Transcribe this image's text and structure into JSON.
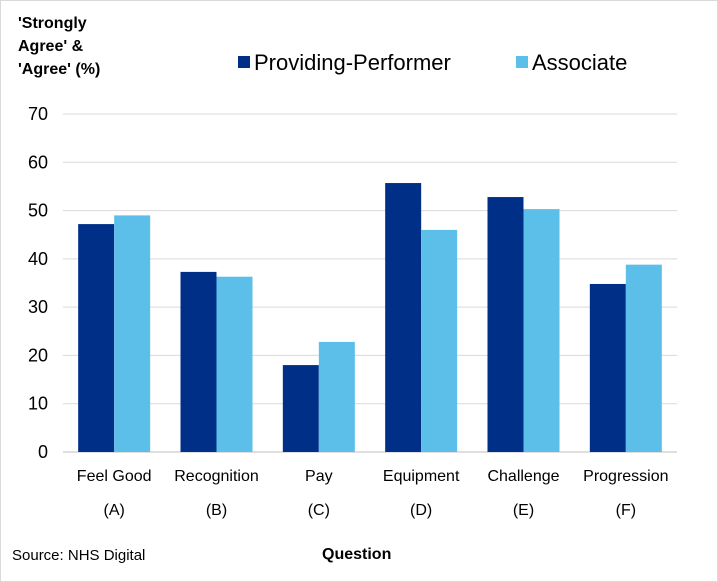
{
  "chart_data": {
    "type": "bar",
    "ylabel": "'Strongly Agree' & 'Agree' (%)",
    "xlabel": "Question",
    "source": "Source: NHS Digital",
    "ylim": [
      0,
      70
    ],
    "yticks": [
      0,
      10,
      20,
      30,
      40,
      50,
      60,
      70
    ],
    "grid": true,
    "legend_position": "top",
    "categories": [
      {
        "name": "Feel Good",
        "code": "(A)"
      },
      {
        "name": "Recognition",
        "code": "(B)"
      },
      {
        "name": "Pay",
        "code": "(C)"
      },
      {
        "name": "Equipment",
        "code": "(D)"
      },
      {
        "name": "Challenge",
        "code": "(E)"
      },
      {
        "name": "Progression",
        "code": "(F)"
      }
    ],
    "series": [
      {
        "name": "Providing-Performer",
        "color": "#002f87",
        "values": [
          47.2,
          37.3,
          18.0,
          55.7,
          52.8,
          34.8
        ]
      },
      {
        "name": "Associate",
        "color": "#5bbfea",
        "values": [
          49.0,
          36.3,
          22.8,
          46.0,
          50.3,
          38.8
        ]
      }
    ]
  }
}
